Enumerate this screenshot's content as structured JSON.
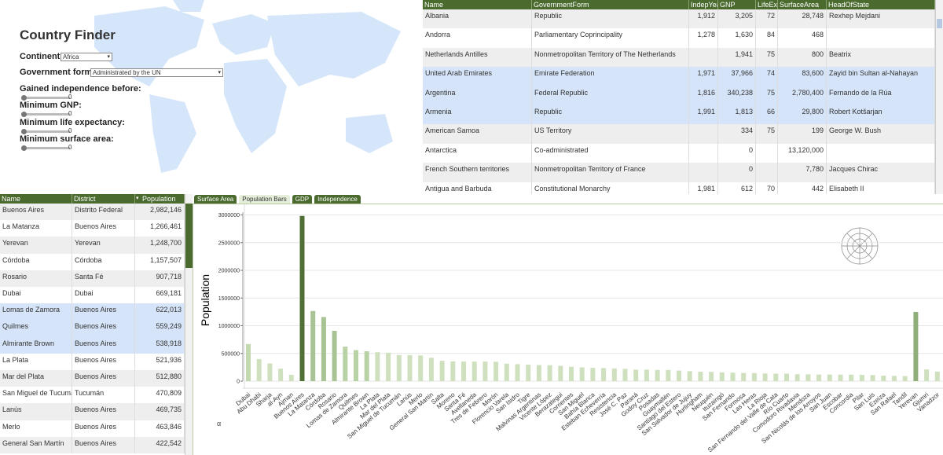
{
  "finder": {
    "title": "Country Finder",
    "continent_label": "Continent:",
    "continent": "Africa",
    "government_label": "Government form:",
    "government": "Administrated by the UN",
    "sliders": [
      {
        "label": "Gained independence before:",
        "value": 0
      },
      {
        "label": "Minimum GNP:",
        "value": 0
      },
      {
        "label": "Minimum life expectancy:",
        "value": 0
      },
      {
        "label": "Minimum surface area:",
        "value": 0
      }
    ]
  },
  "country_table": {
    "columns": [
      "Name",
      "GovernmentForm",
      "IndepYea",
      "GNP",
      "LifeExp",
      "SurfaceArea",
      "HeadOfState"
    ],
    "rows": [
      [
        "Albania",
        "Republic",
        "1,912",
        "3,205",
        "72",
        "28,748",
        "Rexhep Mejdani"
      ],
      [
        "Andorra",
        "Parliamentary Coprincipality",
        "1,278",
        "1,630",
        "84",
        "468",
        null
      ],
      [
        "Netherlands Antilles",
        "Nonmetropolitan Territory of The Netherlands",
        null,
        "1,941",
        "75",
        "800",
        "Beatrix"
      ],
      [
        "United Arab Emirates",
        "Emirate Federation",
        "1,971",
        "37,966",
        "74",
        "83,600",
        "Zayid bin Sultan al-Nahayan"
      ],
      [
        "Argentina",
        "Federal Republic",
        "1,816",
        "340,238",
        "75",
        "2,780,400",
        "Fernando de la Rúa"
      ],
      [
        "Armenia",
        "Republic",
        "1,991",
        "1,813",
        "66",
        "29,800",
        "Robert Kotšarjan"
      ],
      [
        "American Samoa",
        "US Territory",
        null,
        "334",
        "75",
        "199",
        "George W. Bush"
      ],
      [
        "Antarctica",
        "Co-administrated",
        null,
        "0",
        null,
        "13,120,000",
        null
      ],
      [
        "French Southern territories",
        "Nonmetropolitan Territory of France",
        null,
        "0",
        null,
        "7,780",
        "Jacques Chirac"
      ],
      [
        "Antigua and Barbuda",
        "Constitutional Monarchy",
        "1,981",
        "612",
        "70",
        "442",
        "Elisabeth II"
      ]
    ],
    "selected_rows": [
      3,
      4,
      5
    ]
  },
  "city_table": {
    "columns": [
      "Name",
      "District",
      "Population"
    ],
    "rows": [
      [
        "Buenos Aires",
        "Distrito Federal",
        "2,982,146"
      ],
      [
        "La Matanza",
        "Buenos Aires",
        "1,266,461"
      ],
      [
        "Yerevan",
        "Yerevan",
        "1,248,700"
      ],
      [
        "Córdoba",
        "Córdoba",
        "1,157,507"
      ],
      [
        "Rosario",
        "Santa Fé",
        "907,718"
      ],
      [
        "Dubai",
        "Dubai",
        "669,181"
      ],
      [
        "Lomas de Zamora",
        "Buenos Aires",
        "622,013"
      ],
      [
        "Quilmes",
        "Buenos Aires",
        "559,249"
      ],
      [
        "Almirante Brown",
        "Buenos Aires",
        "538,918"
      ],
      [
        "La Plata",
        "Buenos Aires",
        "521,936"
      ],
      [
        "Mar del Plata",
        "Buenos Aires",
        "512,880"
      ],
      [
        "San Miguel de Tucumán",
        "Tucumán",
        "470,809"
      ],
      [
        "Lanús",
        "Buenos Aires",
        "469,735"
      ],
      [
        "Merlo",
        "Buenos Aires",
        "463,846"
      ],
      [
        "General San Martín",
        "Buenos Aires",
        "422,542"
      ]
    ],
    "selected_rows": [
      6,
      7,
      8
    ]
  },
  "tabs": {
    "items": [
      "Surface Area",
      "Population Bars",
      "GDP",
      "Independence"
    ],
    "active": 1
  },
  "chart_data": {
    "type": "bar",
    "y_label": "Population",
    "corner_label": "α",
    "categories": [
      "Dubai",
      "Abu Dhabi",
      "Sharja",
      "al-Ayn",
      "Ajman",
      "Buenos Aires",
      "La Matanza",
      "Córdoba",
      "Rosario",
      "Lomas de Zamora",
      "Quilmes",
      "Almirante Brown",
      "La Plata",
      "Mar del Plata",
      "San Miguel de Tucumán",
      "Lanús",
      "Merlo",
      "General San Martín",
      "Salta",
      "Moreno",
      "Santa Fé",
      "Avellaneda",
      "Tres de Febrero",
      "Morón",
      "Florencio Varela",
      "San Isidro",
      "Tigre",
      "Malvinas Argentinas",
      "Vicente López",
      "Berazategui",
      "Corrientes",
      "San Miguel",
      "Bahía Blanca",
      "Esteban Echeverría",
      "Resistencia",
      "José C. Paz",
      "Paraná",
      "Godoy Cruz",
      "Posadas",
      "Guaymallén",
      "Santiago del Estero",
      "San Salvador de Jujuy",
      "Hurlingham",
      "Neuquén",
      "Ituzaingó",
      "San Fernando",
      "Formosa",
      "Las Heras",
      "La Rioja",
      "San Fernando del Valle de Cata",
      "Río Cuarto",
      "Comodoro Rivadavia",
      "Mendoza",
      "San Nicolás de los Arroyos",
      "San Juan",
      "Escobar",
      "Concordia",
      "Pilar",
      "San Luis",
      "Ezeiza",
      "San Rafael",
      "Tandil",
      "Yerevan",
      "Gjumri",
      "Vanadzor"
    ],
    "values": [
      669181,
      398695,
      320095,
      225970,
      114395,
      2982146,
      1266461,
      1157507,
      907718,
      622013,
      559249,
      538918,
      521936,
      512880,
      470809,
      469735,
      463846,
      422542,
      367550,
      356993,
      353063,
      353046,
      352311,
      349246,
      315432,
      306341,
      296226,
      290335,
      288341,
      276916,
      258103,
      248700,
      239810,
      235760,
      229212,
      221754,
      207041,
      206998,
      201273,
      200595,
      189947,
      178748,
      170028,
      167296,
      158197,
      153036,
      147636,
      145823,
      138117,
      134935,
      134355,
      124104,
      123027,
      119302,
      119152,
      116675,
      116485,
      113428,
      110136,
      99578,
      94651,
      91101,
      1248700,
      211700,
      172700
    ],
    "colors": [
      "#c2d8ae",
      "#cfe0bf",
      "#cfe0bf",
      "#cfe0bf",
      "#cfe0bf",
      "#4f6f35",
      "#a8c494",
      "#a8c494",
      "#a8c494",
      "#b8d1a5",
      "#b8d1a5",
      "#b8d1a5",
      "#cfe0bf",
      "#cfe0bf",
      "#cfe0bf",
      "#cfe0bf",
      "#cfe0bf",
      "#cfe0bf",
      "#cfe0bf",
      "#cfe0bf",
      "#cfe0bf",
      "#cfe0bf",
      "#cfe0bf",
      "#cfe0bf",
      "#cfe0bf",
      "#cfe0bf",
      "#cfe0bf",
      "#cfe0bf",
      "#cfe0bf",
      "#cfe0bf",
      "#cfe0bf",
      "#cfe0bf",
      "#cfe0bf",
      "#cfe0bf",
      "#cfe0bf",
      "#cfe0bf",
      "#cfe0bf",
      "#cfe0bf",
      "#cfe0bf",
      "#cfe0bf",
      "#cfe0bf",
      "#cfe0bf",
      "#cfe0bf",
      "#cfe0bf",
      "#cfe0bf",
      "#cfe0bf",
      "#cfe0bf",
      "#cfe0bf",
      "#cfe0bf",
      "#cfe0bf",
      "#cfe0bf",
      "#cfe0bf",
      "#cfe0bf",
      "#cfe0bf",
      "#cfe0bf",
      "#cfe0bf",
      "#cfe0bf",
      "#cfe0bf",
      "#cfe0bf",
      "#cfe0bf",
      "#cfe0bf",
      "#cfe0bf",
      "#8fae7a",
      "#cfe0bf",
      "#cfe0bf"
    ],
    "ylim": [
      0,
      3050000
    ],
    "yticks": [
      0,
      500000,
      1000000,
      1500000,
      2000000,
      2500000,
      3000000
    ],
    "grid": true
  }
}
